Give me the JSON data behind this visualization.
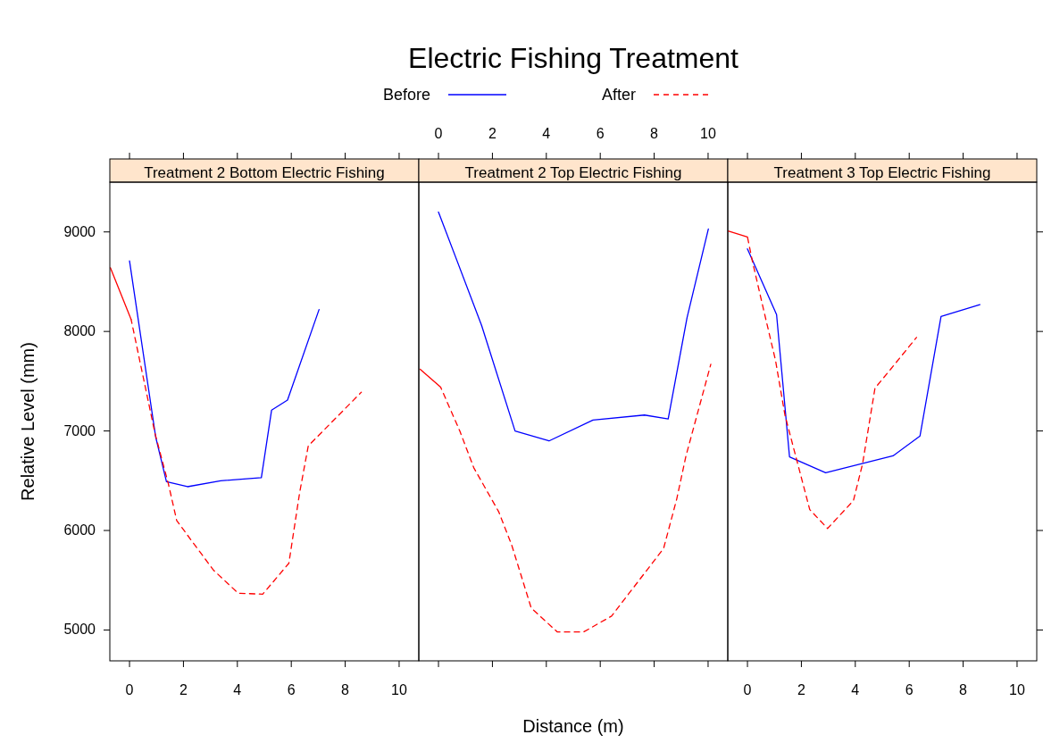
{
  "chart_data": [
    {
      "type": "line",
      "title": "Treatment 2 Bottom Electric Fishing",
      "ylabel": "Relative Level (mm)",
      "xlim": [
        -0.73,
        10.73
      ],
      "xticks": [
        0,
        2,
        4,
        6,
        8,
        10
      ],
      "ylim": [
        4690,
        9500
      ],
      "yticks": [
        5000,
        6000,
        7000,
        8000,
        9000
      ],
      "grid": false,
      "legend": false,
      "series": [
        {
          "color": "#0000ff",
          "line_style": "solid",
          "x": [
            0,
            0.97,
            1.37,
            2.15,
            3.38,
            4.35,
            4.89,
            5.27,
            5.86,
            7.03
          ],
          "values": [
            8710,
            6940,
            6490,
            6440,
            6500,
            6520,
            6530,
            7210,
            7310,
            8220
          ]
        },
        {
          "color": "#ff0000",
          "line_style": "dashed",
          "x": [
            0.06,
            0.95,
            1.44,
            1.75,
            2.43,
            3.12,
            4.03,
            4.94,
            5.91,
            6.31,
            6.63,
            8.6
          ],
          "values": [
            8120,
            6970,
            6470,
            6100,
            5850,
            5600,
            5370,
            5360,
            5670,
            6380,
            6850,
            7390
          ]
        },
        {
          "color": "#ff0000",
          "line_style": "solid",
          "x": [
            -0.71,
            0.06
          ],
          "values": [
            8640,
            8120
          ]
        }
      ]
    },
    {
      "type": "line",
      "title": "Electric Fishing Treatment",
      "subtitle": "Treatment 2 Top Electric Fishing",
      "xlabel": "Distance (m)",
      "xlim": [
        -0.73,
        10.73
      ],
      "xticks": [
        0,
        2,
        4,
        6,
        8,
        10
      ],
      "ylim": [
        4690,
        9500
      ],
      "tick_labels": "x",
      "grid": false,
      "legend": "top",
      "series": [
        {
          "name": "Before",
          "color": "#0000ff",
          "line_style": "solid",
          "x": [
            0,
            1.6,
            2.84,
            4.1,
            5.73,
            7.64,
            8.52,
            9.22,
            10.01
          ],
          "values": [
            9200,
            8060,
            7000,
            6900,
            7110,
            7160,
            7120,
            8140,
            9030
          ]
        },
        {
          "name": "After",
          "color": "#ff0000",
          "line_style": "dashed",
          "x": [
            0.08,
            0.79,
            1.31,
            2.23,
            2.72,
            3.44,
            4.41,
            5.38,
            6.42,
            8.35,
            8.84,
            9.18,
            10.1
          ],
          "values": [
            7440,
            7000,
            6630,
            6190,
            5850,
            5220,
            4980,
            4980,
            5140,
            5820,
            6320,
            6750,
            7670
          ]
        },
        {
          "color": "#ff0000",
          "line_style": "solid",
          "x": [
            -0.68,
            0.08
          ],
          "values": [
            7620,
            7440
          ]
        }
      ]
    },
    {
      "type": "line",
      "title": "Treatment 3 Top Electric Fishing",
      "xlim": [
        -0.73,
        10.73
      ],
      "xticks": [
        0,
        2,
        4,
        6,
        8,
        10
      ],
      "ylim": [
        4690,
        9500
      ],
      "yticks": [
        {
          "value": 5000,
          "label": null
        },
        {
          "value": 6000,
          "label": null
        },
        {
          "value": 7000,
          "label": null
        },
        {
          "value": 8000,
          "label": null
        },
        {
          "value": 9000,
          "label": null
        }
      ],
      "tick_labels": "x",
      "grid": false,
      "legend": false,
      "series": [
        {
          "color": "#0000ff",
          "line_style": "solid",
          "x": [
            0,
            1.08,
            1.56,
            2.9,
            5.4,
            6.4,
            7.18,
            8.62
          ],
          "values": [
            8830,
            8170,
            6740,
            6580,
            6750,
            6950,
            8150,
            8270
          ]
        },
        {
          "color": "#ff0000",
          "line_style": "dashed",
          "x": [
            0,
            0.18,
            0.58,
            1.04,
            1.39,
            2.31,
            2.97,
            3.93,
            4.27,
            4.73,
            5.31,
            6.27
          ],
          "values": [
            8950,
            8710,
            8240,
            7710,
            7160,
            6210,
            6020,
            6300,
            6670,
            7430,
            7620,
            7940
          ]
        },
        {
          "color": "#ff0000",
          "line_style": "solid",
          "x": [
            -0.72,
            0
          ],
          "values": [
            9010,
            8950
          ]
        }
      ]
    }
  ]
}
